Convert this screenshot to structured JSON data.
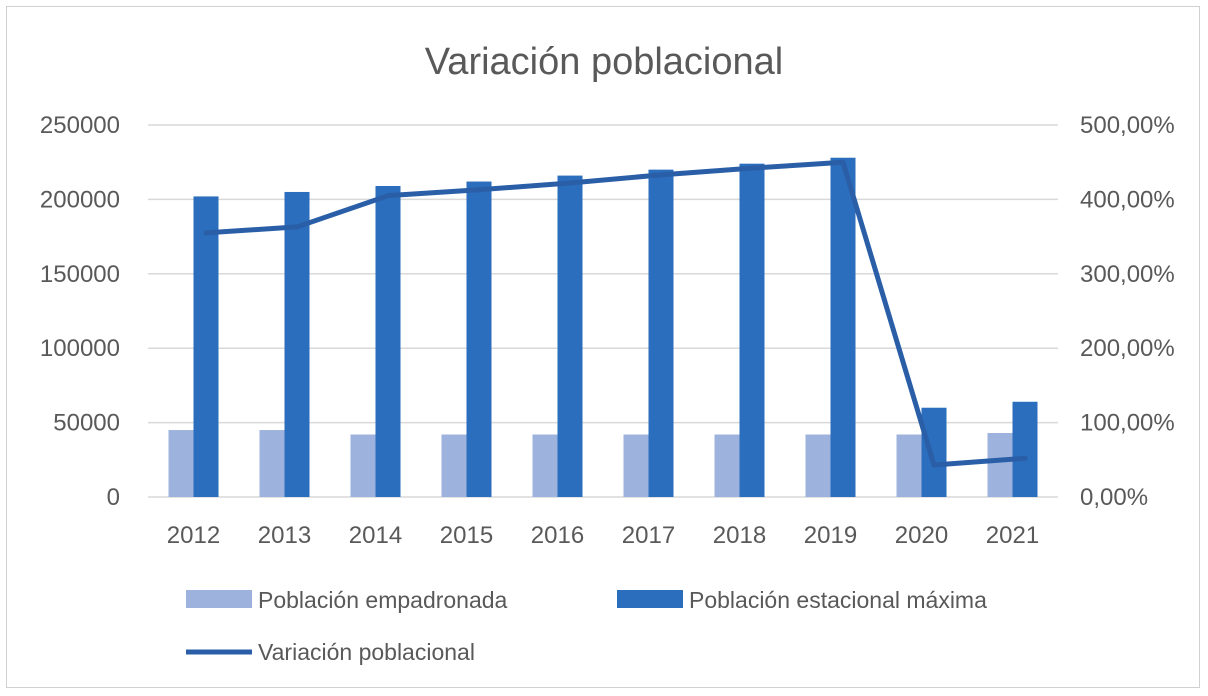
{
  "chart_data": {
    "type": "bar",
    "title": "Variación poblacional",
    "categories": [
      "2012",
      "2013",
      "2014",
      "2015",
      "2016",
      "2017",
      "2018",
      "2019",
      "2020",
      "2021"
    ],
    "series": [
      {
        "name": "Población empadronada",
        "type": "bar",
        "axis": "left",
        "color": "#9db3dd",
        "values": [
          45000,
          45000,
          42000,
          42000,
          42000,
          42000,
          42000,
          42000,
          42000,
          43000
        ]
      },
      {
        "name": "Población estacional máxima",
        "type": "bar",
        "axis": "left",
        "color": "#2a6ebd",
        "values": [
          202000,
          205000,
          209000,
          212000,
          216000,
          220000,
          224000,
          228000,
          60000,
          64000
        ]
      },
      {
        "name": "Variación poblacional",
        "type": "line",
        "axis": "right",
        "color": "#2a5fa7",
        "values": [
          3.55,
          3.63,
          4.05,
          4.13,
          4.22,
          4.33,
          4.42,
          4.5,
          0.43,
          0.52
        ]
      }
    ],
    "y_left": {
      "ylim": [
        0,
        250000
      ],
      "ticks": [
        "0",
        "50000",
        "100000",
        "150000",
        "200000",
        "250000"
      ]
    },
    "y_right": {
      "ylim": [
        0,
        5
      ],
      "ticks": [
        "0,00%",
        "100,00%",
        "200,00%",
        "300,00%",
        "400,00%",
        "500,00%"
      ]
    },
    "grid": true,
    "legend_position": "bottom"
  }
}
